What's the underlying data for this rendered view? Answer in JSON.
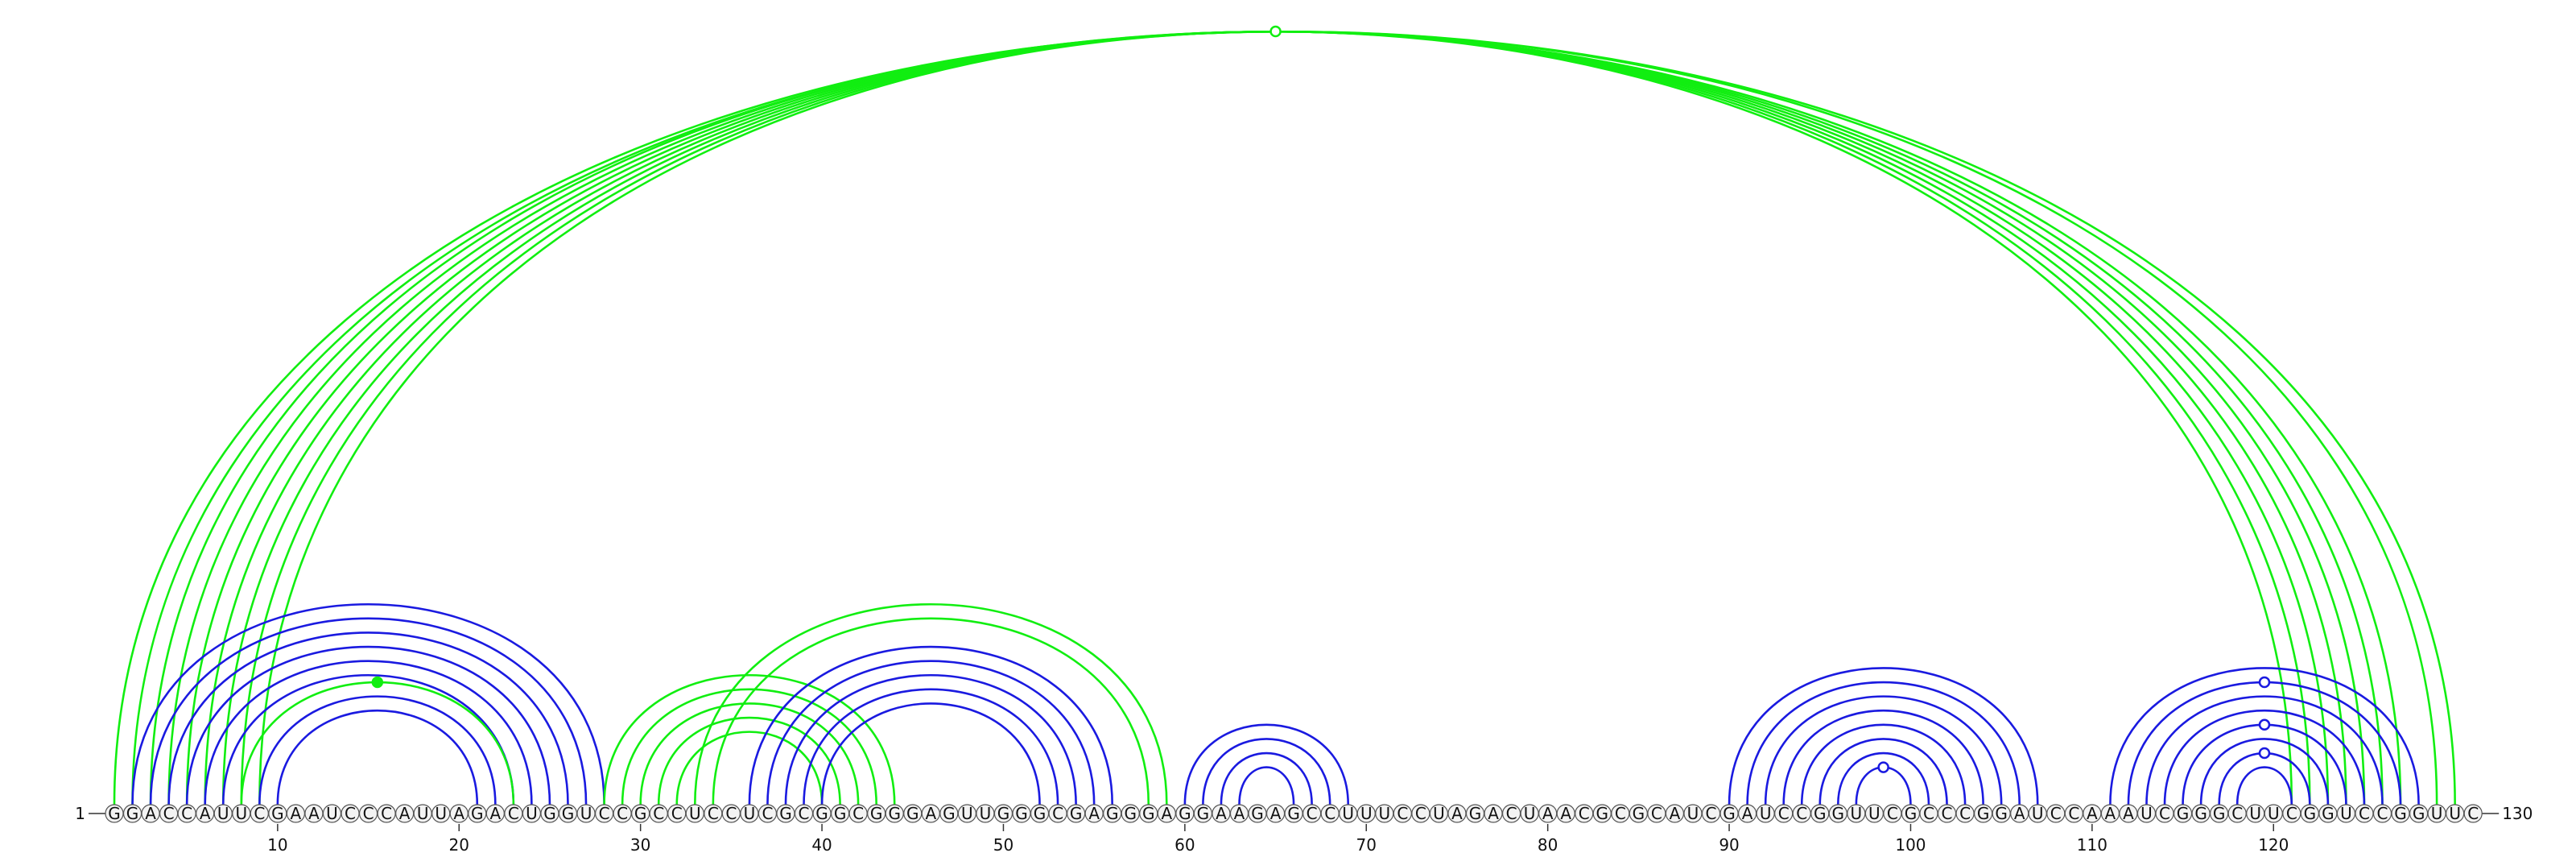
{
  "diagram": {
    "start_label": "1",
    "end_label": "130",
    "sequence": "GGACCAUUCGAAUCCCAUUAGACUGGUCCGCCUCCUCGCGGCGGGAGUUGGGCGAGGGAGGAAGAGCCUUUCCUAGACUAACGCGCAUCGAUCCGGUUCGCCCGGAUCCAAAUCGGGCUUCGGUCCGGUUC",
    "ticks": [
      10,
      20,
      30,
      40,
      50,
      60,
      70,
      80,
      90,
      100,
      110,
      120
    ],
    "colors": {
      "green": "#11ee11",
      "blue": "#1a1ae0"
    },
    "arcs": [
      {
        "i": 1,
        "j": 130,
        "color": "green"
      },
      {
        "i": 2,
        "j": 129,
        "color": "green"
      },
      {
        "i": 3,
        "j": 127,
        "color": "green"
      },
      {
        "i": 4,
        "j": 126,
        "color": "green"
      },
      {
        "i": 5,
        "j": 125,
        "color": "green"
      },
      {
        "i": 6,
        "j": 124,
        "color": "green"
      },
      {
        "i": 7,
        "j": 123,
        "color": "green"
      },
      {
        "i": 8,
        "j": 122,
        "color": "green"
      },
      {
        "i": 9,
        "j": 121,
        "color": "green"
      },
      {
        "i": 2,
        "j": 28,
        "color": "blue"
      },
      {
        "i": 3,
        "j": 27,
        "color": "blue"
      },
      {
        "i": 4,
        "j": 26,
        "color": "blue"
      },
      {
        "i": 5,
        "j": 25,
        "color": "blue"
      },
      {
        "i": 6,
        "j": 24,
        "color": "blue"
      },
      {
        "i": 7,
        "j": 23,
        "color": "blue"
      },
      {
        "i": 9,
        "j": 22,
        "color": "blue"
      },
      {
        "i": 10,
        "j": 21,
        "color": "blue"
      },
      {
        "i": 8,
        "j": 23,
        "color": "green"
      },
      {
        "i": 28,
        "j": 44,
        "color": "green"
      },
      {
        "i": 29,
        "j": 43,
        "color": "green"
      },
      {
        "i": 30,
        "j": 42,
        "color": "green"
      },
      {
        "i": 31,
        "j": 41,
        "color": "green"
      },
      {
        "i": 32,
        "j": 40,
        "color": "green"
      },
      {
        "i": 33,
        "j": 59,
        "color": "green"
      },
      {
        "i": 34,
        "j": 58,
        "color": "green"
      },
      {
        "i": 36,
        "j": 56,
        "color": "blue"
      },
      {
        "i": 37,
        "j": 55,
        "color": "blue"
      },
      {
        "i": 38,
        "j": 54,
        "color": "blue"
      },
      {
        "i": 39,
        "j": 53,
        "color": "blue"
      },
      {
        "i": 40,
        "j": 52,
        "color": "blue"
      },
      {
        "i": 60,
        "j": 69,
        "color": "blue"
      },
      {
        "i": 61,
        "j": 68,
        "color": "blue"
      },
      {
        "i": 62,
        "j": 67,
        "color": "blue"
      },
      {
        "i": 63,
        "j": 66,
        "color": "blue"
      },
      {
        "i": 90,
        "j": 107,
        "color": "blue"
      },
      {
        "i": 91,
        "j": 106,
        "color": "blue"
      },
      {
        "i": 92,
        "j": 105,
        "color": "blue"
      },
      {
        "i": 93,
        "j": 104,
        "color": "blue"
      },
      {
        "i": 94,
        "j": 103,
        "color": "blue"
      },
      {
        "i": 95,
        "j": 102,
        "color": "blue"
      },
      {
        "i": 96,
        "j": 101,
        "color": "blue"
      },
      {
        "i": 97,
        "j": 100,
        "color": "blue"
      },
      {
        "i": 111,
        "j": 128,
        "color": "blue"
      },
      {
        "i": 112,
        "j": 127,
        "color": "blue"
      },
      {
        "i": 113,
        "j": 126,
        "color": "blue"
      },
      {
        "i": 114,
        "j": 125,
        "color": "blue"
      },
      {
        "i": 115,
        "j": 124,
        "color": "blue"
      },
      {
        "i": 116,
        "j": 123,
        "color": "blue"
      },
      {
        "i": 117,
        "j": 122,
        "color": "blue"
      },
      {
        "i": 118,
        "j": 121,
        "color": "blue"
      }
    ],
    "markers": [
      {
        "i": 9,
        "j": 121,
        "color": "green",
        "filled": false
      },
      {
        "i": 8,
        "j": 23,
        "color": "green",
        "filled": true
      },
      {
        "i": 97,
        "j": 100,
        "color": "blue",
        "filled": false
      },
      {
        "i": 112,
        "j": 127,
        "color": "blue",
        "filled": false
      },
      {
        "i": 115,
        "j": 124,
        "color": "blue",
        "filled": false
      },
      {
        "i": 117,
        "j": 122,
        "color": "blue",
        "filled": false
      }
    ]
  }
}
